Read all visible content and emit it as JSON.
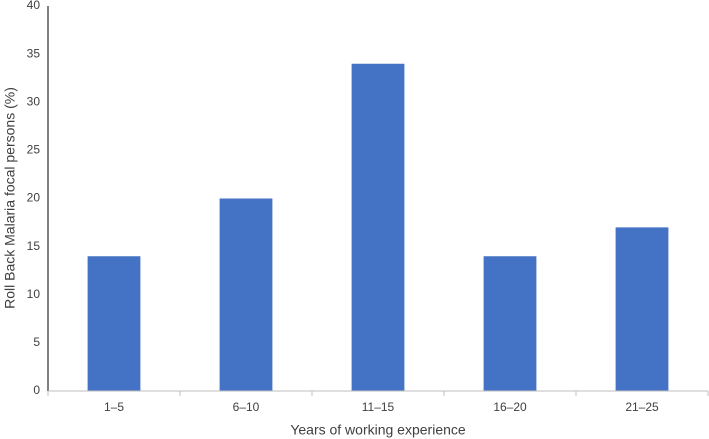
{
  "chart_data": {
    "type": "bar",
    "x_label": "Years of working experience",
    "y_label": "Roll Back Malaria focal persons (%)",
    "categories": [
      "1–5",
      "6–10",
      "11–15",
      "16–20",
      "21–25"
    ],
    "values": [
      14,
      20,
      34,
      14,
      17
    ],
    "color": "#4472c4",
    "ylim": [
      0,
      40
    ],
    "yticks": [
      0,
      5,
      10,
      15,
      20,
      25,
      30,
      35,
      40
    ],
    "grid": false
  }
}
